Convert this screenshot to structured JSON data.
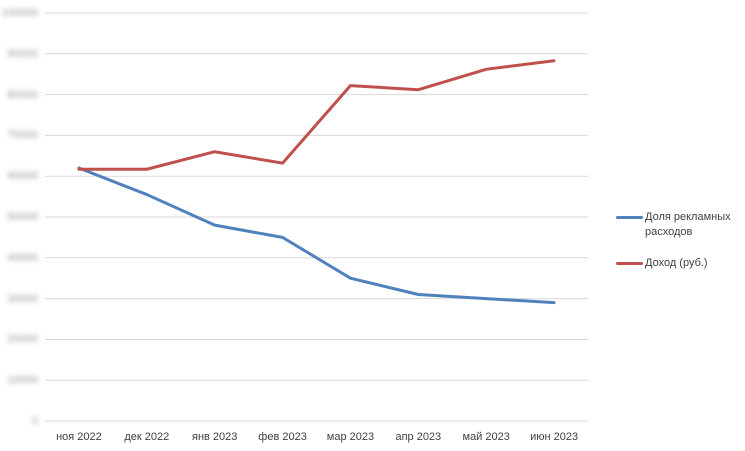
{
  "chart_data": {
    "type": "line",
    "categories": [
      "ноя 2022",
      "дек 2022",
      "янв 2023",
      "фев 2023",
      "мар 2023",
      "апр 2023",
      "май 2023",
      "июн 2023"
    ],
    "series": [
      {
        "key": "ad-share",
        "name": "Доля рекламных расходов",
        "color": "#4F81BD",
        "values": [
          62000,
          55500,
          48000,
          45000,
          35000,
          31000,
          30000,
          29000
        ]
      },
      {
        "key": "revenue",
        "name": "Доход (руб.)",
        "color": "#C0504D",
        "values": [
          61700,
          61700,
          66000,
          63200,
          82200,
          81200,
          86200,
          88300
        ]
      }
    ],
    "title": "",
    "xlabel": "",
    "ylabel": "",
    "ylim": [
      0,
      100000
    ],
    "y_tick_step": 10000,
    "y_tick_labels": [
      "100000",
      "90000",
      "80000",
      "70000",
      "60000",
      "50000",
      "40000",
      "30000",
      "20000",
      "10000",
      "0"
    ],
    "y_tick_labels_blurred": true,
    "grid": true,
    "gridline_color": "#D9D9D9",
    "legend_position": "right",
    "background_color": "#FFFFFF",
    "tick_label_color": "#404040"
  },
  "legend": {
    "items": [
      {
        "label": "Доля рекламных расходов"
      },
      {
        "label": "Доход (руб.)"
      }
    ]
  }
}
